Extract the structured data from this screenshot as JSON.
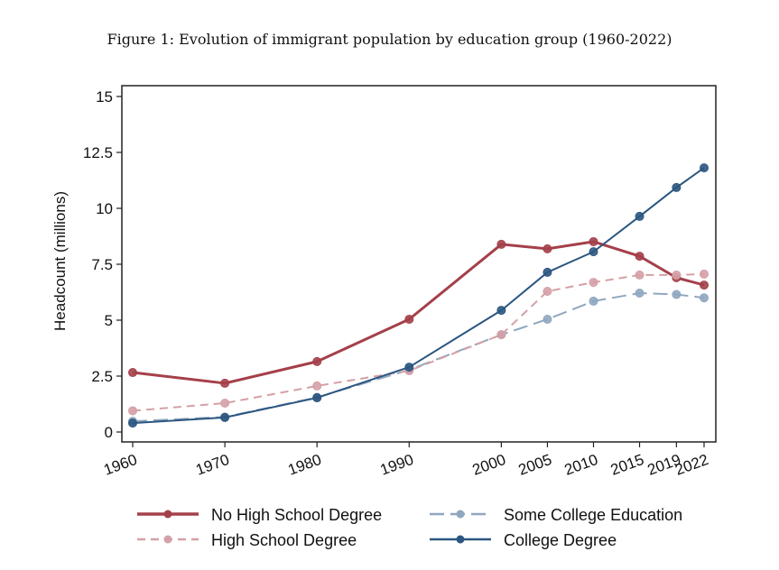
{
  "chart_data": {
    "type": "line",
    "title": "Figure 1: Evolution of immigrant population by education group (1960-2022)",
    "xlabel": "",
    "ylabel": "Headcount (millions)",
    "x": [
      1960,
      1970,
      1980,
      1990,
      2000,
      2005,
      2010,
      2015,
      2019,
      2022
    ],
    "x_tick_labels": [
      "1960",
      "1970",
      "1980",
      "1990",
      "2000",
      "2005",
      "2010",
      "2015",
      "2019",
      "2022"
    ],
    "y_ticks": [
      0,
      2.5,
      5,
      7.5,
      10,
      12.5,
      15
    ],
    "y_tick_labels": [
      "0",
      "2.5",
      "5",
      "7.5",
      "10",
      "12.5",
      "15"
    ],
    "ylim": [
      -0.4,
      15.5
    ],
    "grid": false,
    "legend_position": "bottom",
    "series": [
      {
        "name": "No High School Degree",
        "color": "#a4404a",
        "dash": "solid",
        "width": 3,
        "values": [
          2.66,
          2.18,
          3.15,
          5.04,
          8.39,
          8.19,
          8.51,
          7.86,
          6.9,
          6.57
        ]
      },
      {
        "name": "Some College Education",
        "color": "#8fa7bf",
        "dash": "long",
        "width": 2,
        "values": [
          0.48,
          0.67,
          1.55,
          2.78,
          4.35,
          5.04,
          5.85,
          6.21,
          6.15,
          6.0
        ]
      },
      {
        "name": "High School Degree",
        "color": "#d5a0a6",
        "dash": "dash",
        "width": 2,
        "values": [
          0.95,
          1.29,
          2.06,
          2.74,
          4.35,
          6.29,
          6.69,
          7.02,
          7.02,
          7.06
        ]
      },
      {
        "name": "College Degree",
        "color": "#2b5680",
        "dash": "solid",
        "width": 2,
        "values": [
          0.4,
          0.65,
          1.53,
          2.9,
          5.44,
          7.14,
          8.06,
          9.64,
          10.93,
          11.81
        ]
      }
    ]
  }
}
